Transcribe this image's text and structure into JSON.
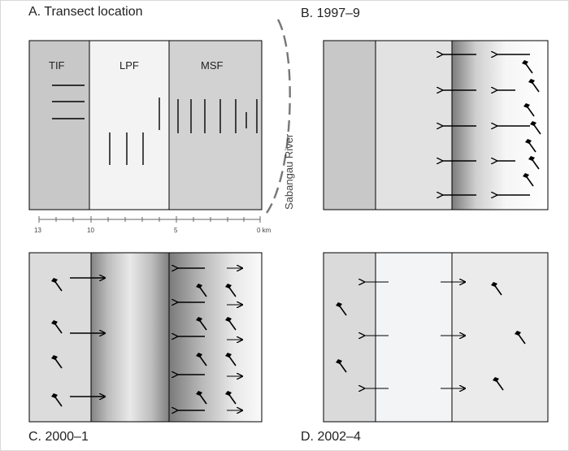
{
  "panels": {
    "a": {
      "title": "A. Transect location",
      "zones": [
        "TIF",
        "LPF",
        "MSF"
      ],
      "river": "Sabangau River",
      "scale_ticks": [
        "13",
        "10",
        "5",
        "0 km"
      ]
    },
    "b": {
      "title": "B. 1997–9"
    },
    "c": {
      "title": "C. 2000–1"
    },
    "d": {
      "title": "D. 2002–4"
    }
  },
  "colors": {
    "tif": "#c8c8c8",
    "lpf": "#f3f3f3",
    "msf": "#d2d2d2",
    "border": "#000000",
    "fire_dark": "#7c7c7c",
    "river": "#777777"
  },
  "icons": [
    "logging-axe-icon",
    "arrow-icon"
  ]
}
